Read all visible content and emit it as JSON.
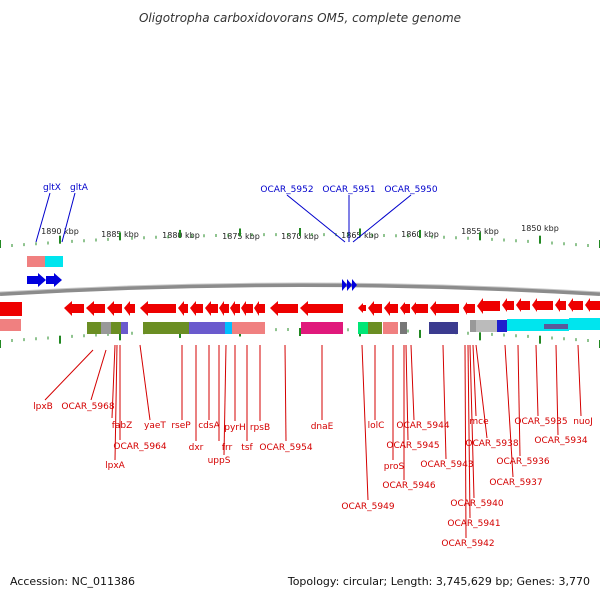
{
  "title": "Oligotropha carboxidovorans OM5, complete genome",
  "accession": "Accession: NC_011386",
  "topology": "Topology: circular; Length: 3,745,629 bp; Genes: 3,770",
  "scale_labels": [
    "1890 kbp",
    "1885 kbp",
    "1880 kbp",
    "1875 kbp",
    "1870 kbp",
    "1865 kbp",
    "1860 kbp",
    "1855 kbp",
    "1850 kbp"
  ],
  "top_labels": [
    "gltX",
    "gltA",
    "OCAR_5952",
    "OCAR_5951",
    "OCAR_5950"
  ],
  "bottom_labels": [
    "lpxB",
    "OCAR_5968",
    "fabZ",
    "OCAR_5964",
    "lpxA",
    "yaeT",
    "rseP",
    "dxr",
    "cdsA",
    "frr",
    "uppS",
    "pyrH",
    "tsf",
    "rpsB",
    "OCAR_5954",
    "dnaE",
    "lolC",
    "proS",
    "OCAR_5949",
    "OCAR_5945",
    "OCAR_5946",
    "OCAR_5944",
    "OCAR_5943",
    "mce",
    "OCAR_5938",
    "OCAR_5940",
    "OCAR_5941",
    "OCAR_5942",
    "OCAR_5937",
    "OCAR_5936",
    "OCAR_5935",
    "nuoJ",
    "OCAR_5934"
  ],
  "colors": {
    "gene_reverse": "#ee0000",
    "gene_forward": "#0000dd",
    "backbone": "#888888",
    "ticks": "#228822",
    "label_red": "#d40000",
    "label_blue": "#0000cc"
  }
}
